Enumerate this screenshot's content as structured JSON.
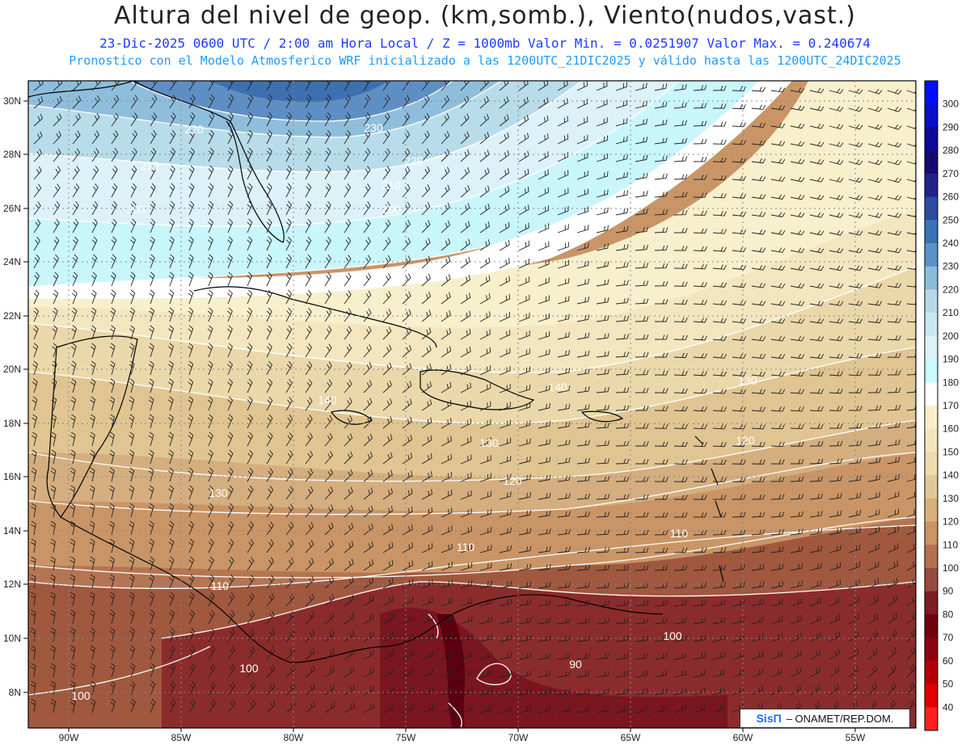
{
  "header": {
    "title": "Altura del nivel de geop. (km,somb.), Viento(nudos,vast.)",
    "subtitle_1": "23-Dic-2025  0600 UTC / 2:00 am Hora Local / Z = 1000mb  Valor Min. = 0.0251907  Valor Max. = 0.240674",
    "subtitle_2": "Pronostico con el Modelo Atmosferico WRF inicializado a las 1200UTC_21DIC2025 y válido hasta las  1200UTC_24DIC2025"
  },
  "axes": {
    "lat_labels": [
      "30N",
      "28N",
      "26N",
      "24N",
      "22N",
      "20N",
      "18N",
      "16N",
      "14N",
      "12N",
      "10N",
      "8N"
    ],
    "lon_labels": [
      "90W",
      "85W",
      "80W",
      "75W",
      "70W",
      "65W",
      "60W",
      "55W"
    ]
  },
  "contour_labels": [
    {
      "text": "230"
    },
    {
      "text": "220"
    },
    {
      "text": "210"
    },
    {
      "text": "200"
    },
    {
      "text": "220"
    },
    {
      "text": "210"
    },
    {
      "text": "200"
    },
    {
      "text": "140"
    },
    {
      "text": "140"
    },
    {
      "text": "130"
    },
    {
      "text": "130"
    },
    {
      "text": "120"
    },
    {
      "text": "120"
    },
    {
      "text": "130"
    },
    {
      "text": "110"
    },
    {
      "text": "110"
    },
    {
      "text": "110"
    },
    {
      "text": "100"
    },
    {
      "text": "100"
    },
    {
      "text": "100"
    },
    {
      "text": "90"
    }
  ],
  "colorbar": {
    "labels": [
      "300",
      "290",
      "280",
      "270",
      "260",
      "250",
      "240",
      "230",
      "220",
      "210",
      "200",
      "190",
      "180",
      "170",
      "160",
      "150",
      "140",
      "130",
      "120",
      "110",
      "100",
      "90",
      "80",
      "70",
      "60",
      "50",
      "40"
    ],
    "colors": [
      "#0010ff",
      "#0a10c8",
      "#0c0a96",
      "#160a6e",
      "#22228c",
      "#2c4c9e",
      "#3a72b4",
      "#5a92c8",
      "#8cbcdc",
      "#b6d8e8",
      "#c8e8f0",
      "#dcf2f8",
      "#c8faff",
      "#ffffff",
      "#f8f0c8",
      "#f2e6bc",
      "#ecdcae",
      "#e2c898",
      "#d8b07c",
      "#c89464",
      "#b47050",
      "#964c3c",
      "#7c1c24",
      "#6e0010",
      "#8c0010",
      "#b40008",
      "#e00000",
      "#ff2020"
    ]
  },
  "credit": {
    "logo": "SisΠ",
    "text": "– ONAMET/REP.DOM."
  }
}
